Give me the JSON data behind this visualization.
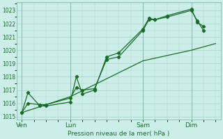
{
  "xlabel": "Pression niveau de la mer( hPa )",
  "bg_color": "#cceee8",
  "grid_color": "#aad4cc",
  "line_color": "#1a6b2a",
  "spine_color": "#88bbb0",
  "ylim": [
    1014.8,
    1023.6
  ],
  "yticks": [
    1015,
    1016,
    1017,
    1018,
    1019,
    1020,
    1021,
    1022,
    1023
  ],
  "xtick_labels": [
    "Ven",
    "Lun",
    "Sam",
    "Dim"
  ],
  "xtick_positions": [
    0,
    48,
    120,
    168
  ],
  "total_hours": 192,
  "series1_x": [
    0,
    6,
    18,
    24,
    48,
    54,
    60,
    72,
    84,
    96,
    120,
    126,
    132,
    144,
    168,
    174,
    180
  ],
  "series1_y": [
    1015.3,
    1016.8,
    1015.8,
    1015.8,
    1016.1,
    1018.0,
    1016.7,
    1017.0,
    1019.5,
    1019.8,
    1021.6,
    1022.4,
    1022.3,
    1022.5,
    1023.0,
    1022.2,
    1021.5
  ],
  "series2_x": [
    0,
    6,
    18,
    24,
    48,
    54,
    60,
    72,
    84,
    96,
    120,
    126,
    132,
    144,
    168,
    174,
    180
  ],
  "series2_y": [
    1015.3,
    1016.0,
    1015.9,
    1015.9,
    1016.4,
    1017.2,
    1017.0,
    1017.1,
    1019.3,
    1019.5,
    1021.5,
    1022.3,
    1022.3,
    1022.6,
    1023.1,
    1022.1,
    1021.8
  ],
  "trend_x": [
    0,
    48,
    120,
    168,
    192
  ],
  "trend_y": [
    1015.3,
    1016.5,
    1019.2,
    1020.0,
    1020.5
  ]
}
